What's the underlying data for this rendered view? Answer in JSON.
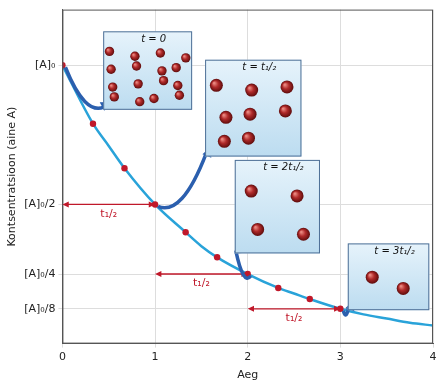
{
  "chart_data": {
    "type": "line",
    "x_label": "Aeg",
    "y_label": "Kontsentratsioon (aine A)",
    "x": [
      0,
      0.33,
      0.5,
      0.67,
      1,
      1.33,
      1.5,
      1.67,
      2,
      2.33,
      2.5,
      2.67,
      3,
      3.25,
      3.5,
      3.75,
      4
    ],
    "series": [
      {
        "type": "line",
        "color": "#29a3d9",
        "marker": "none",
        "line_style": "solid",
        "values": [
          1,
          0.79,
          0.71,
          0.63,
          0.5,
          0.4,
          0.35,
          0.31,
          0.25,
          0.2,
          0.18,
          0.16,
          0.125,
          0.105,
          0.09,
          0.075,
          0.065
        ]
      },
      {
        "type": "scatter",
        "color": "#c0182a",
        "marker": "circle",
        "values": [
          1,
          0.79,
          null,
          0.63,
          0.5,
          0.4,
          null,
          0.31,
          0.25,
          0.2,
          null,
          0.16,
          0.125,
          null,
          null,
          null,
          null
        ]
      }
    ],
    "xlim": [
      0,
      4
    ],
    "xticks": [
      0,
      1,
      2,
      3,
      4
    ],
    "ylim": [
      0,
      1.2
    ],
    "yticks": [
      {
        "value": 0.125,
        "label": "[A]₀/8"
      },
      {
        "value": 0.25,
        "label": "[A]₀/4"
      },
      {
        "value": 0.5,
        "label": "[A]₀/2"
      },
      {
        "value": 1,
        "label": "[A]₀"
      }
    ],
    "grid": true,
    "annotations": [
      {
        "text": "t₁/₂",
        "x": [
          0,
          1
        ],
        "y": 0.5
      },
      {
        "text": "t₁/₂",
        "x": [
          1,
          2
        ],
        "y": 0.25
      },
      {
        "text": "t₁/₂",
        "x": [
          2,
          3
        ],
        "y": 0.125
      }
    ],
    "insets": [
      {
        "title": "t = 0",
        "particles": 16,
        "x": 0,
        "y": 1
      },
      {
        "title": "t = t₁/₂",
        "particles": 8,
        "x": 1,
        "y": 0.5
      },
      {
        "title": "t = 2t₁/₂",
        "particles": 4,
        "x": 2,
        "y": 0.25
      },
      {
        "title": "t = 3t₁/₂",
        "particles": 2,
        "x": 3,
        "y": 0.125
      }
    ]
  }
}
